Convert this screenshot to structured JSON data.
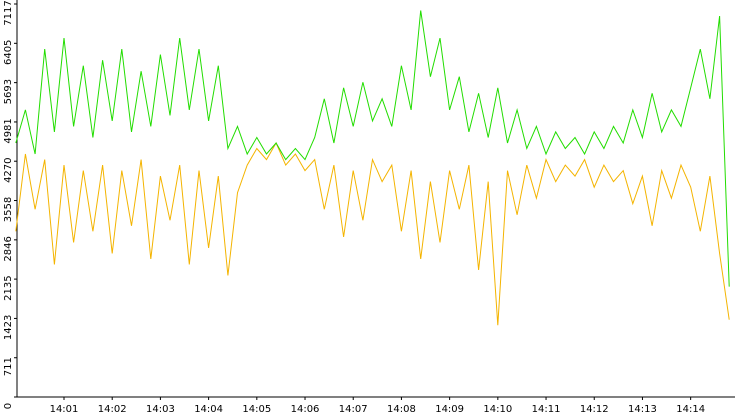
{
  "chart_data": {
    "type": "line",
    "x": [
      0,
      0.2,
      0.4,
      0.6,
      0.8,
      1.0,
      1.2,
      1.4,
      1.6,
      1.8,
      2.0,
      2.2,
      2.4,
      2.6,
      2.8,
      3.0,
      3.2,
      3.4,
      3.6,
      3.8,
      4.0,
      4.2,
      4.4,
      4.6,
      4.8,
      5.0,
      5.2,
      5.4,
      5.6,
      5.8,
      6.0,
      6.2,
      6.4,
      6.6,
      6.8,
      7.0,
      7.2,
      7.4,
      7.6,
      7.8,
      8.0,
      8.2,
      8.4,
      8.6,
      8.8,
      9.0,
      9.2,
      9.4,
      9.6,
      9.8,
      10.0,
      10.2,
      10.4,
      10.6,
      10.8,
      11.0,
      11.2,
      11.4,
      11.6,
      11.8,
      12.0,
      12.2,
      12.4,
      12.6,
      12.8,
      13.0,
      13.2,
      13.4,
      13.6,
      13.8,
      14.0,
      14.2,
      14.4,
      14.6,
      14.8
    ],
    "series": [
      {
        "color": "#22dd00",
        "values": [
          4600,
          5200,
          4400,
          6300,
          4800,
          6500,
          4900,
          6000,
          4700,
          6100,
          5000,
          6300,
          4800,
          5900,
          4900,
          6200,
          5100,
          6500,
          5200,
          6300,
          5000,
          6000,
          4500,
          4900,
          4400,
          4700,
          4400,
          4600,
          4300,
          4500,
          4300,
          4700,
          5400,
          4600,
          5600,
          4900,
          5700,
          5000,
          5400,
          4900,
          6000,
          5200,
          7000,
          5800,
          6500,
          5200,
          5800,
          4800,
          5500,
          4700,
          5600,
          4600,
          5200,
          4500,
          4900,
          4400,
          4800,
          4500,
          4700,
          4400,
          4800,
          4500,
          4900,
          4600,
          5200,
          4700,
          5500,
          4800,
          5200,
          4900,
          5600,
          6300,
          5400,
          6900,
          2000
        ]
      },
      {
        "color": "#f4b400",
        "values": [
          3000,
          4400,
          3400,
          4300,
          2400,
          4200,
          2800,
          4100,
          3000,
          4200,
          2600,
          4100,
          3100,
          4300,
          2500,
          4000,
          3200,
          4200,
          2400,
          4100,
          2700,
          4000,
          2200,
          3700,
          4200,
          4500,
          4300,
          4600,
          4200,
          4400,
          4100,
          4300,
          3400,
          4200,
          2900,
          4100,
          3200,
          4300,
          3900,
          4200,
          3000,
          4100,
          2500,
          3900,
          2800,
          4100,
          3400,
          4200,
          2300,
          3900,
          1300,
          4100,
          3300,
          4200,
          3600,
          4300,
          3900,
          4200,
          4000,
          4300,
          3800,
          4200,
          3900,
          4100,
          3500,
          4000,
          3100,
          4100,
          3600,
          4200,
          3800,
          3000,
          4000,
          2600,
          1400
        ]
      }
    ],
    "xlim": [
      0,
      14.92
    ],
    "xticks": [
      {
        "value": 1,
        "label": "14:01"
      },
      {
        "value": 2,
        "label": "14:02"
      },
      {
        "value": 3,
        "label": "14:03"
      },
      {
        "value": 4,
        "label": "14:04"
      },
      {
        "value": 5,
        "label": "14:05"
      },
      {
        "value": 6,
        "label": "14:06"
      },
      {
        "value": 7,
        "label": "14:07"
      },
      {
        "value": 8,
        "label": "14:08"
      },
      {
        "value": 9,
        "label": "14:09"
      },
      {
        "value": 10,
        "label": "14:10"
      },
      {
        "value": 11,
        "label": "14:11"
      },
      {
        "value": 12,
        "label": "14:12"
      },
      {
        "value": 13,
        "label": "14:13"
      },
      {
        "value": 14,
        "label": "14:14"
      }
    ],
    "ylim": [
      0,
      7117
    ],
    "yticks": [
      0,
      711,
      1423,
      2135,
      2846,
      3558,
      4270,
      4981,
      5693,
      6405,
      7117
    ]
  }
}
